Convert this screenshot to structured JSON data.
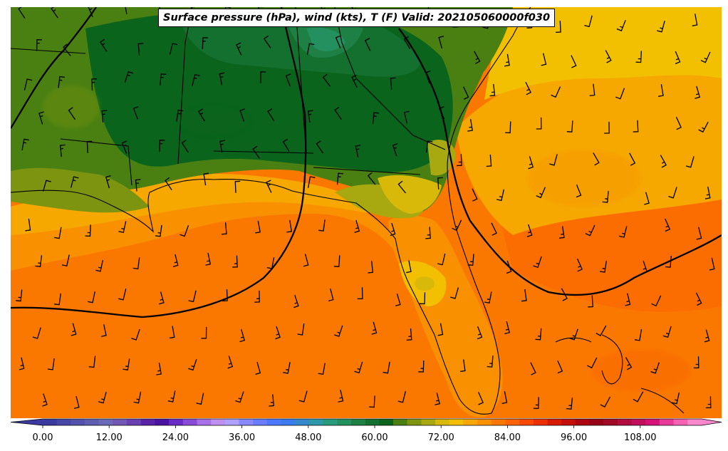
{
  "title": "Surface pressure (hPa), wind (kts), T (F) Valid: 202105060000f030",
  "colorbar": {
    "ticks": [
      "0.00",
      "12.00",
      "24.00",
      "36.00",
      "48.00",
      "60.00",
      "72.00",
      "84.00",
      "96.00",
      "108.00"
    ],
    "colors": [
      "#3a3aa0",
      "#4747a8",
      "#5252ac",
      "#5e5eb0",
      "#6a6ab8",
      "#7258b4",
      "#6a3fb0",
      "#5a22a8",
      "#4a12a0",
      "#6a2ac4",
      "#8a4ad8",
      "#a870e8",
      "#c090f0",
      "#b0a0ff",
      "#8888ff",
      "#6a7cff",
      "#4a78ff",
      "#3a7cee",
      "#3488cc",
      "#2e98a8",
      "#2a9a7c",
      "#249060",
      "#1e8044",
      "#14702e",
      "#0a641c",
      "#4a8012",
      "#7c9410",
      "#a8a810",
      "#d8b808",
      "#f2c000",
      "#f6a800",
      "#f89000",
      "#fa7800",
      "#fc6200",
      "#f84800",
      "#ec2e00",
      "#d81a04",
      "#c40e0a",
      "#ae0610",
      "#980216",
      "#a00a26",
      "#b00c40",
      "#c00e5c",
      "#d41278",
      "#e83a98",
      "#f462b4",
      "#fa88cc"
    ]
  },
  "legend": {
    "quantity": "Temperature",
    "units": "F"
  }
}
